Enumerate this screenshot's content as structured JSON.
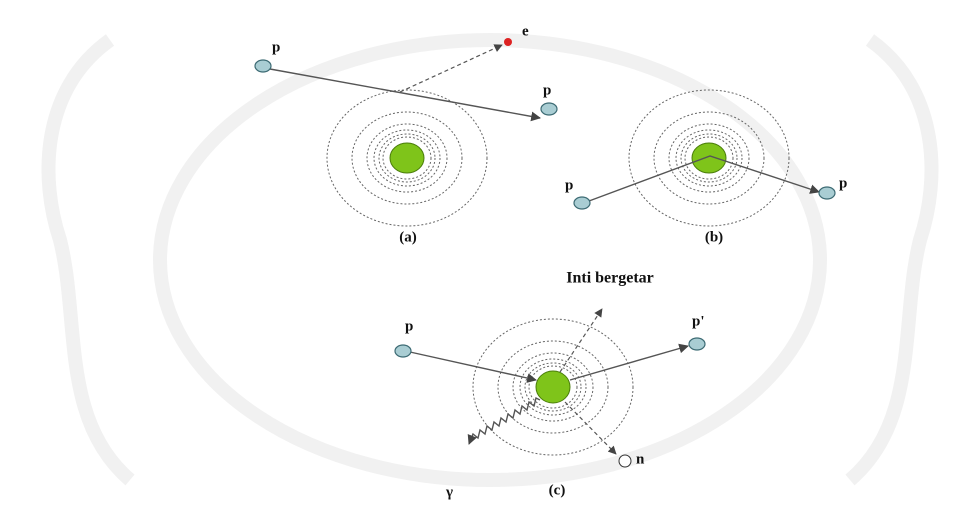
{
  "panel_a": {
    "label": "(a)",
    "incoming": "p",
    "outgoing": "p",
    "electron": "e"
  },
  "panel_b": {
    "label": "(b)",
    "incoming": "p",
    "outgoing": "p"
  },
  "panel_c": {
    "title": "Inti bergetar",
    "label": "(c)",
    "incoming": "p",
    "outgoing": "p'",
    "neutron": "n",
    "gamma": "γ"
  }
}
